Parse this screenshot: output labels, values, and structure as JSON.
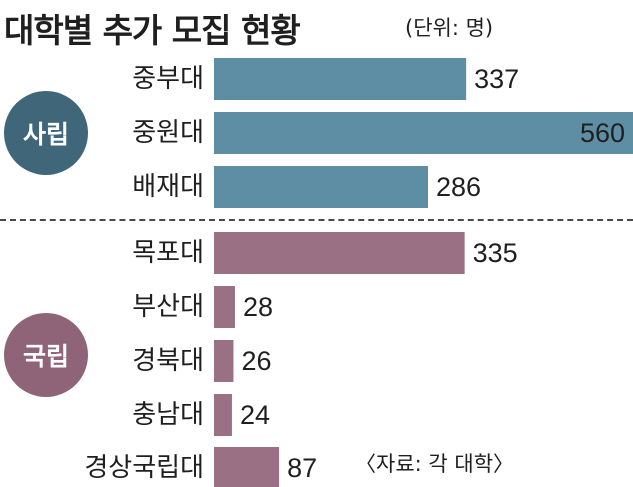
{
  "chart_data": {
    "type": "bar",
    "orientation": "horizontal",
    "title": "대학별 추가 모집 현황",
    "unit_note": "(단위: 명)",
    "source": "〈자료: 각 대학〉",
    "xlim": [
      0,
      560
    ],
    "groups": [
      {
        "name": "사립",
        "color": "#5e8ea3",
        "badge_color": "#3f6779",
        "categories": [
          "중부대",
          "중원대",
          "배재대"
        ],
        "values": [
          337,
          560,
          286
        ]
      },
      {
        "name": "국립",
        "color": "#9a7184",
        "badge_color": "#8f6478",
        "categories": [
          "목포대",
          "부산대",
          "경북대",
          "충남대",
          "경상국립대"
        ],
        "values": [
          335,
          28,
          26,
          24,
          87
        ]
      }
    ]
  }
}
